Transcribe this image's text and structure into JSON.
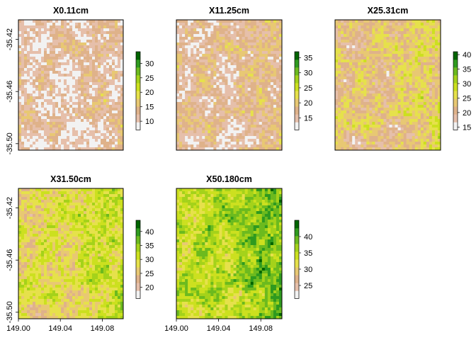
{
  "chart_data": [
    {
      "type": "heatmap",
      "title": "X0.11cm",
      "legend": {
        "ticks": [
          10,
          15,
          20,
          25,
          30
        ],
        "range": [
          7,
          34
        ]
      },
      "xlim": [
        149.0,
        149.1
      ],
      "ylim": [
        -35.505,
        -35.405
      ],
      "x_ticks": [],
      "y_ticks": [
        "-35.42",
        "-35.46",
        "-35.50"
      ],
      "mean_level": 0.15
    },
    {
      "type": "heatmap",
      "title": "X11.25cm",
      "legend": {
        "ticks": [
          15,
          20,
          25,
          30,
          35
        ],
        "range": [
          11,
          37
        ]
      },
      "xlim": [
        149.0,
        149.1
      ],
      "ylim": [
        -35.505,
        -35.405
      ],
      "x_ticks": [],
      "y_ticks": [],
      "mean_level": 0.2
    },
    {
      "type": "heatmap",
      "title": "X25.31cm",
      "legend": {
        "ticks": [
          15,
          20,
          25,
          30,
          35,
          40
        ],
        "range": [
          14,
          41
        ]
      },
      "xlim": [
        149.0,
        149.1
      ],
      "ylim": [
        -35.505,
        -35.405
      ],
      "x_ticks": [],
      "y_ticks": [],
      "mean_level": 0.32
    },
    {
      "type": "heatmap",
      "title": "X31.50cm",
      "legend": {
        "ticks": [
          20,
          25,
          30,
          35,
          40
        ],
        "range": [
          16,
          44
        ]
      },
      "xlim": [
        149.0,
        149.1
      ],
      "ylim": [
        -35.505,
        -35.405
      ],
      "x_ticks": [
        "149.00",
        "149.04",
        "149.08"
      ],
      "y_ticks": [
        "-35.42",
        "-35.46",
        "-35.50"
      ],
      "mean_level": 0.45
    },
    {
      "type": "heatmap",
      "title": "X50.180cm",
      "legend": {
        "ticks": [
          25,
          30,
          35,
          40
        ],
        "range": [
          21,
          45
        ]
      },
      "xlim": [
        149.0,
        149.1
      ],
      "ylim": [
        -35.505,
        -35.405
      ],
      "x_ticks": [
        "149.00",
        "149.04",
        "149.08"
      ],
      "y_ticks": [],
      "mean_level": 0.6
    }
  ],
  "colors": {
    "ramp": [
      "#f2f2f2",
      "#e6bfaa",
      "#dfb28a",
      "#e8c873",
      "#e6e14b",
      "#cce01f",
      "#a4d21a",
      "#6cba1e",
      "#2f9a1f",
      "#006400"
    ]
  }
}
